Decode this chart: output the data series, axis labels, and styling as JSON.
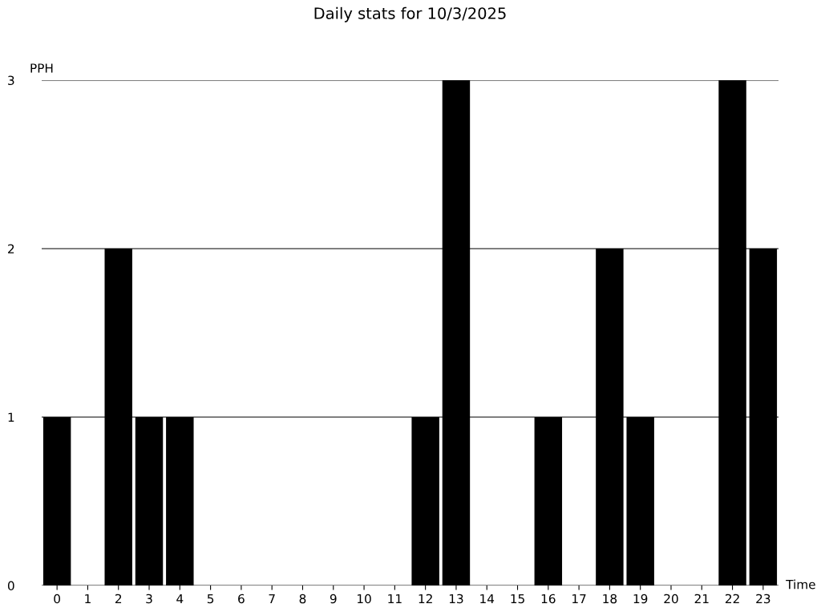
{
  "chart_data": {
    "type": "bar",
    "title": "Daily stats for 10/3/2025",
    "xlabel": "Time",
    "ylabel": "PPH",
    "categories": [
      "0",
      "1",
      "2",
      "3",
      "4",
      "5",
      "6",
      "7",
      "8",
      "9",
      "10",
      "11",
      "12",
      "13",
      "14",
      "15",
      "16",
      "17",
      "18",
      "19",
      "20",
      "21",
      "22",
      "23"
    ],
    "values": [
      1,
      0,
      2,
      1,
      1,
      0,
      0,
      0,
      0,
      0,
      0,
      0,
      1,
      3,
      0,
      0,
      1,
      0,
      2,
      1,
      0,
      0,
      3,
      2
    ],
    "color": "#000000",
    "ylim": [
      0,
      3
    ],
    "yticks": [
      0,
      1,
      2,
      3
    ],
    "grid": "y"
  }
}
